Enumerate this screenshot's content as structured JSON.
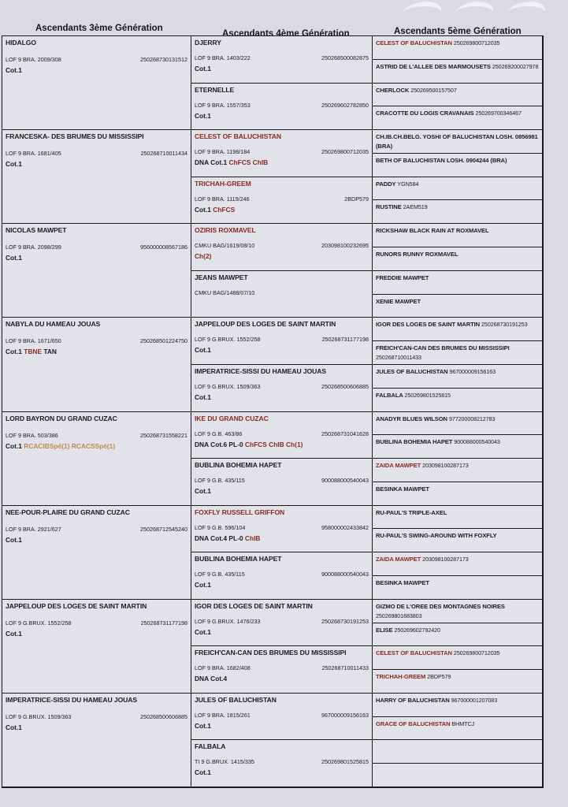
{
  "headers": {
    "gen3": "Ascendants 3ème Génération",
    "gen4": "Ascendants 4ème Génération",
    "gen5": "Ascendants 5ème Génération"
  },
  "gen3": [
    {
      "name": "HIDALGO",
      "reg": "LOF 9 BRA. 2009/308",
      "chip": "250268730131512",
      "titles": [
        {
          "t": "Cot.1",
          "c": "black"
        }
      ]
    },
    {
      "name": "FRANCESKA- DES BRUMES DU MISSISSIPI",
      "reg": "LOF 9 BRA. 1681/405",
      "chip": "250268710011434",
      "titles": [
        {
          "t": "Cot.1",
          "c": "black"
        }
      ]
    },
    {
      "name": "NICOLAS MAWPET",
      "reg": "LOF 9 BRA. 2098/299",
      "chip": "956000008567186",
      "titles": [
        {
          "t": "Cot.1",
          "c": "black"
        }
      ]
    },
    {
      "name": "NABYLA DU HAMEAU JOUAS",
      "reg": "LOF 9 BRA. 1671/650",
      "chip": "250268501224750",
      "titles": [
        {
          "t": "Cot.1 ",
          "c": "black"
        },
        {
          "t": "TBNE ",
          "c": "red"
        },
        {
          "t": "TAN",
          "c": "black"
        }
      ]
    },
    {
      "name": "LORD BAYRON DU GRAND CUZAC",
      "reg": "LOF 9 BRA. 503/386",
      "chip": "250268731558221",
      "titles": [
        {
          "t": "Cot.1 ",
          "c": "black"
        },
        {
          "t": "RCACIBSpé(1) RCACSSpé(1)",
          "c": "orange"
        }
      ]
    },
    {
      "name": "NEE-POUR-PLAIRE DU GRAND CUZAC",
      "reg": "LOF 9 BRA. 2921/627",
      "chip": "250268712545240",
      "titles": [
        {
          "t": "Cot.1",
          "c": "black"
        }
      ]
    },
    {
      "name": "JAPPELOUP DES LOGES DE SAINT MARTIN",
      "reg": "LOF 9 G.BRUX. 1552/258",
      "chip": "250268731177198",
      "titles": [
        {
          "t": "Cot.1",
          "c": "black"
        }
      ]
    },
    {
      "name": "IMPERATRICE-SISSI DU HAMEAU JOUAS",
      "reg": "LOF 9 G.BRUX. 1509/363",
      "chip": "250268500606885",
      "titles": [
        {
          "t": "Cot.1",
          "c": "black"
        }
      ]
    }
  ],
  "gen4": [
    {
      "name": "DJERRY",
      "reg": "LOF 9 BRA. 1403/222",
      "chip": "250268500082875",
      "titles": [
        {
          "t": "Cot.1",
          "c": "black"
        }
      ]
    },
    {
      "name": "ETERNELLE",
      "reg": "LOF 9 BRA. 1557/353",
      "chip": "250269602782850",
      "titles": [
        {
          "t": "Cot.1",
          "c": "black"
        }
      ]
    },
    {
      "name": "CELEST OF BALUCHISTAN",
      "color": "red",
      "reg": "LOF 9 BRA. 1198/184",
      "chip": "250269800712035",
      "titles": [
        {
          "t": "DNA Cot.1 ",
          "c": "black"
        },
        {
          "t": "ChFCS ChIB",
          "c": "red"
        }
      ]
    },
    {
      "name": "TRICHAH-GREEM",
      "color": "red",
      "reg": "LOF 9 BRA. 1119/246",
      "chip": "2BDP579",
      "titles": [
        {
          "t": "Cot.1 ",
          "c": "black"
        },
        {
          "t": "ChFCS",
          "c": "red"
        }
      ]
    },
    {
      "name": "OZIRIS ROXMAVEL",
      "color": "red",
      "reg": "CMKU BAG/1619/08/10",
      "chip": "203098100232695",
      "titles": [
        {
          "t": "Ch(2)",
          "c": "red"
        }
      ]
    },
    {
      "name": "JEANS MAWPET",
      "reg": "CMKU BAG/1488/07/10",
      "chip": "",
      "titles": []
    },
    {
      "name": "JAPPELOUP DES LOGES DE SAINT MARTIN",
      "reg": "LOF 9 G.BRUX. 1552/258",
      "chip": "250268731177198",
      "titles": [
        {
          "t": "Cot.1",
          "c": "black"
        }
      ]
    },
    {
      "name": "IMPERATRICE-SISSI DU HAMEAU JOUAS",
      "reg": "LOF 9 G.BRUX. 1509/363",
      "chip": "250268500606885",
      "titles": [
        {
          "t": "Cot.1",
          "c": "black"
        }
      ]
    },
    {
      "name": "IKE DU GRAND CUZAC",
      "color": "red",
      "reg": "LOF 9 G.B. 463/86",
      "chip": "250268731041628",
      "titles": [
        {
          "t": "DNA Cot.6 PL-0 ",
          "c": "black"
        },
        {
          "t": "ChFCS ChIB Ch(1)",
          "c": "red"
        }
      ]
    },
    {
      "name": "BUBLINA BOHEMIA HAPET",
      "reg": "LOF 9 G.B. 435/115",
      "chip": "900088000540043",
      "titles": [
        {
          "t": "Cot.1",
          "c": "black"
        }
      ]
    },
    {
      "name": "FOXFLY RUSSELL GRIFFON",
      "color": "red",
      "reg": "LOF 9 G.B. 596/104",
      "chip": "958000002433842",
      "titles": [
        {
          "t": "DNA Cot.4 PL-0 ",
          "c": "black"
        },
        {
          "t": "ChIB",
          "c": "red"
        }
      ]
    },
    {
      "name": "BUBLINA BOHEMIA HAPET",
      "reg": "LOF 9 G.B. 435/115",
      "chip": "900088000540043",
      "titles": [
        {
          "t": "Cot.1",
          "c": "black"
        }
      ]
    },
    {
      "name": "IGOR DES LOGES DE SAINT MARTIN",
      "reg": "LOF 9 G.BRUX. 1476/233",
      "chip": "250268730191253",
      "titles": [
        {
          "t": "Cot.1",
          "c": "black"
        }
      ]
    },
    {
      "name": "FREICH'CAN-CAN DES BRUMES DU MISSISSIPI",
      "reg": "LOF 9 BRA. 1682/408",
      "chip": "250268710011433",
      "titles": [
        {
          "t": "DNA Cot.4",
          "c": "black"
        }
      ]
    },
    {
      "name": "JULES OF BALUCHISTAN",
      "reg": "LOF 9 BRA. 1815/261",
      "chip": "967000009156163",
      "titles": [
        {
          "t": "Cot.1",
          "c": "black"
        }
      ]
    },
    {
      "name": "FALBALA",
      "reg": "TI 9 G.BRUX. 1415/335",
      "chip": "250269801525815",
      "titles": [
        {
          "t": "Cot.1",
          "c": "black"
        }
      ]
    }
  ],
  "gen5": [
    {
      "name": "CELEST OF BALUCHISTAN",
      "color": "red",
      "extra": "250269800712035"
    },
    {
      "name": "ASTRID DE L'ALLEE DES MARMOUSETS",
      "extra": "250269200027978"
    },
    {
      "name": "CHERLOCK",
      "extra": "250269500157507"
    },
    {
      "name": "CRACOTTE DU LOGIS CRAVANAIS",
      "extra": "250269700346467"
    },
    {
      "name": "CH.IB.CH.BELG. YOSHI OF BALUCHISTAN LOSH. 0856981 (BRA)",
      "extra": ""
    },
    {
      "name": "BETH OF BALUCHISTAN LOSH. 0904244 (BRA)",
      "extra": ""
    },
    {
      "name": "PADDY",
      "extra": "YGN584"
    },
    {
      "name": "RUSTINE",
      "extra": "2AEM519"
    },
    {
      "name": "RICKSHAW BLACK RAIN AT ROXMAVEL",
      "extra": ""
    },
    {
      "name": "RUNORS RUNNY ROXMAVEL",
      "extra": ""
    },
    {
      "name": "FREDDIE MAWPET",
      "extra": ""
    },
    {
      "name": "XENIE MAWPET",
      "extra": ""
    },
    {
      "name": "IGOR DES LOGES DE SAINT MARTIN",
      "extra": "250268730191253"
    },
    {
      "name": "FREICH'CAN-CAN DES BRUMES DU MISSISSIPI",
      "extra": "250268710011433"
    },
    {
      "name": "JULES OF BALUCHISTAN",
      "extra": "967000009156163"
    },
    {
      "name": "FALBALA",
      "extra": "250269801525815"
    },
    {
      "name": "ANADYR BLUES WILSON",
      "extra": "977200008212783"
    },
    {
      "name": "BUBLINA BOHEMIA HAPET",
      "extra": "900088000540043"
    },
    {
      "name": "ZAIDA MAWPET",
      "color": "red",
      "extra": "203098100287173"
    },
    {
      "name": "BESINKA MAWPET",
      "extra": ""
    },
    {
      "name": "RU-PAUL'S TRIPLE-AXEL",
      "extra": ""
    },
    {
      "name": "RU-PAUL'S SWING-AROUND WITH FOXFLY",
      "extra": ""
    },
    {
      "name": "ZAIDA MAWPET",
      "color": "red",
      "extra": "203098100287173"
    },
    {
      "name": "BESINKA MAWPET",
      "extra": ""
    },
    {
      "name": "GIZMO DE L'OREE DES MONTAGNES NOIRES",
      "extra": "250269801683803"
    },
    {
      "name": "ELISE",
      "extra": "250269602792420"
    },
    {
      "name": "CELEST OF BALUCHISTAN",
      "color": "red",
      "extra": "250269800712035"
    },
    {
      "name": "TRICHAH-GREEM",
      "color": "red",
      "extra": "2BDP579"
    },
    {
      "name": "HARRY OF BALUCHISTAN",
      "extra": "967000001207083"
    },
    {
      "name": "GRACE OF BALUCHISTAN",
      "color": "red",
      "extra": "BHMTCJ"
    },
    {
      "name": "",
      "extra": ""
    },
    {
      "name": "",
      "extra": ""
    }
  ]
}
